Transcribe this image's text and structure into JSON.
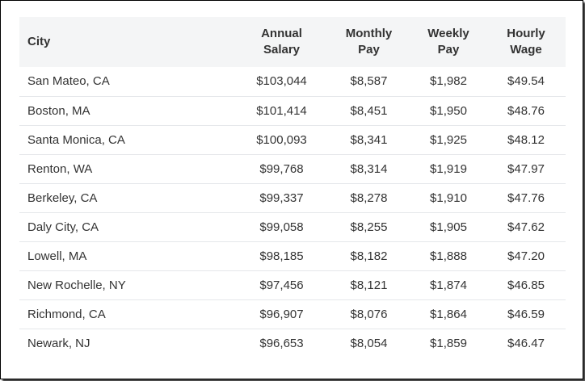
{
  "table": {
    "headers": {
      "city": "City",
      "annual": [
        "Annual",
        "Salary"
      ],
      "monthly": [
        "Monthly",
        "Pay"
      ],
      "weekly": [
        "Weekly",
        "Pay"
      ],
      "hourly": [
        "Hourly",
        "Wage"
      ]
    },
    "rows": [
      {
        "city": "San Mateo, CA",
        "annual": "$103,044",
        "monthly": "$8,587",
        "weekly": "$1,982",
        "hourly": "$49.54"
      },
      {
        "city": "Boston, MA",
        "annual": "$101,414",
        "monthly": "$8,451",
        "weekly": "$1,950",
        "hourly": "$48.76"
      },
      {
        "city": "Santa Monica, CA",
        "annual": "$100,093",
        "monthly": "$8,341",
        "weekly": "$1,925",
        "hourly": "$48.12"
      },
      {
        "city": "Renton, WA",
        "annual": "$99,768",
        "monthly": "$8,314",
        "weekly": "$1,919",
        "hourly": "$47.97"
      },
      {
        "city": "Berkeley, CA",
        "annual": "$99,337",
        "monthly": "$8,278",
        "weekly": "$1,910",
        "hourly": "$47.76"
      },
      {
        "city": "Daly City, CA",
        "annual": "$99,058",
        "monthly": "$8,255",
        "weekly": "$1,905",
        "hourly": "$47.62"
      },
      {
        "city": "Lowell, MA",
        "annual": "$98,185",
        "monthly": "$8,182",
        "weekly": "$1,888",
        "hourly": "$47.20"
      },
      {
        "city": "New Rochelle, NY",
        "annual": "$97,456",
        "monthly": "$8,121",
        "weekly": "$1,874",
        "hourly": "$46.85"
      },
      {
        "city": "Richmond, CA",
        "annual": "$96,907",
        "monthly": "$8,076",
        "weekly": "$1,864",
        "hourly": "$46.59"
      },
      {
        "city": "Newark, NJ",
        "annual": "$96,653",
        "monthly": "$8,054",
        "weekly": "$1,859",
        "hourly": "$46.47"
      }
    ]
  },
  "colors": {
    "header_background": "#f4f5f6",
    "text": "#333333",
    "row_divider": "#e5e7ea"
  }
}
